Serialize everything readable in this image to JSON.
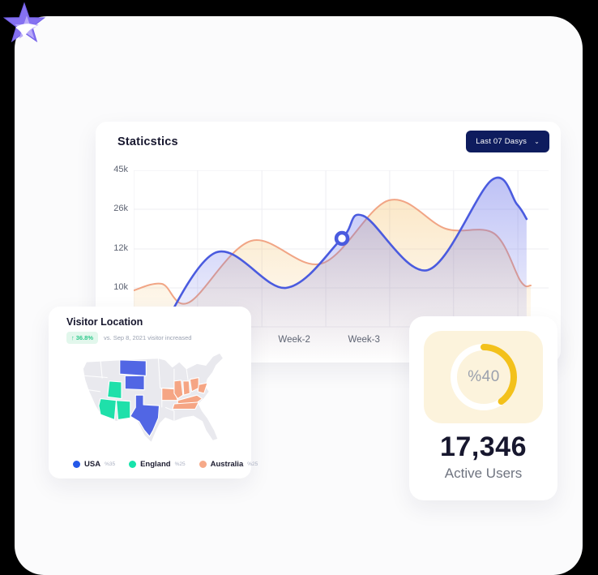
{
  "page": {
    "outer_bg": "#000000",
    "surface_bg": "#fbfbfc"
  },
  "logo": {
    "outer_color": "#8571f1",
    "inner_color": "#b9abf9",
    "shine_color": "#ffffff"
  },
  "stats": {
    "title": "Staticstics",
    "range_button": {
      "label": "Last 07 Dasys",
      "chevron": "⌄",
      "bg": "#0e1c5e"
    }
  },
  "chart_data": {
    "type": "area",
    "title": "Staticstics",
    "grid": true,
    "legend_position": "none",
    "y_axis_note": "tick labels as displayed (non-linear): 45k, 26k, 12k, 10k top-to-bottom",
    "y_ticks": [
      {
        "pos": 0.0,
        "label": "45k"
      },
      {
        "pos": 0.192,
        "label": "26k"
      },
      {
        "pos": 0.388,
        "label": "12k"
      },
      {
        "pos": 0.58,
        "label": "10k"
      },
      {
        "pos": 0.772,
        "label": ""
      }
    ],
    "x_gridlines": [
      0,
      0.154,
      0.309,
      0.463,
      0.617,
      0.771,
      0.926
    ],
    "x_labels": [
      {
        "pos": 0.387,
        "label": "Week-2"
      },
      {
        "pos": 0.555,
        "label": "Week-3"
      }
    ],
    "series": [
      {
        "name": "blue-series",
        "color": "#4a5bdf",
        "fill_top": "rgba(99,108,232,0.42)",
        "fill_bottom": "rgba(99,108,232,0)",
        "points": [
          [
            0.039,
            0.9
          ],
          [
            0.195,
            0.408
          ],
          [
            0.367,
            0.58
          ],
          [
            0.502,
            0.336
          ],
          [
            0.553,
            0.224
          ],
          [
            0.709,
            0.492
          ],
          [
            0.863,
            0.048
          ],
          [
            0.924,
            0.168
          ],
          [
            0.947,
            0.24
          ]
        ]
      },
      {
        "name": "orange-series",
        "color": "#f1a585",
        "fill_top": "rgba(244,189,98,0.35)",
        "fill_bottom": "rgba(244,189,98,0)",
        "points": [
          [
            0.0,
            0.592
          ],
          [
            0.068,
            0.56
          ],
          [
            0.133,
            0.652
          ],
          [
            0.283,
            0.348
          ],
          [
            0.453,
            0.46
          ],
          [
            0.615,
            0.148
          ],
          [
            0.752,
            0.288
          ],
          [
            0.869,
            0.312
          ],
          [
            0.933,
            0.548
          ],
          [
            0.957,
            0.568
          ]
        ]
      }
    ],
    "marker": {
      "series": 0,
      "point": [
        0.502,
        0.336
      ]
    }
  },
  "visitor": {
    "title": "Visitor Location",
    "trend": {
      "arrow": "↑",
      "percent": "36.8%",
      "caption": "vs. Sep 8, 2021 visitor increased",
      "pill_bg": "#e2f7ec",
      "pill_color": "#2fc98c"
    },
    "legend": [
      {
        "label": "USA",
        "share": "%35",
        "color": "#2458e8"
      },
      {
        "label": "England",
        "share": "%25",
        "color": "#17e3ab"
      },
      {
        "label": "Australia",
        "share": "%25",
        "color": "#f6a988"
      }
    ],
    "map_colors": {
      "base": "#e9e9ee",
      "usa": "#5166e4",
      "england": "#1fe0aa",
      "australia": "#f5a584"
    }
  },
  "active_users": {
    "percent": 40,
    "percent_label": "%40",
    "value": "17,346",
    "label": "Active Users",
    "ring_bg": "#ffffff",
    "ring_color": "#f3c11b",
    "panel_bg": "#fcf3dc"
  }
}
